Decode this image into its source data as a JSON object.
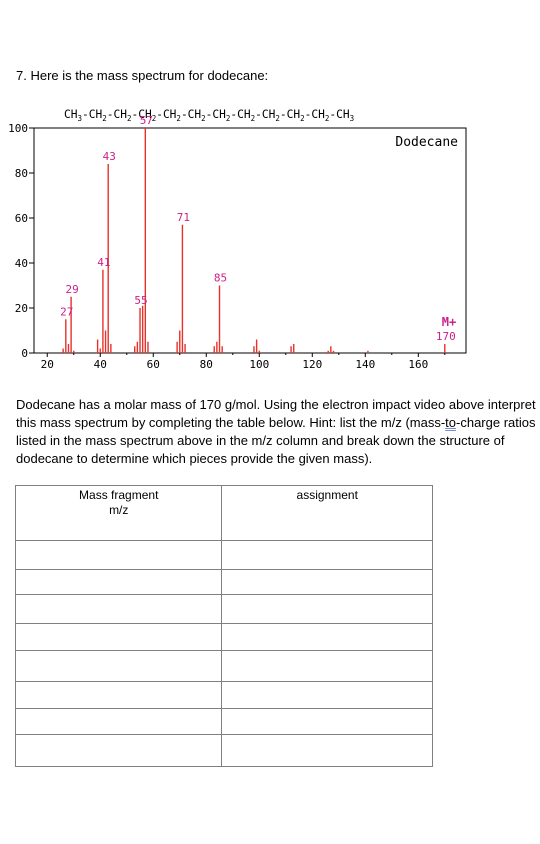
{
  "question": "7.  Here is the mass spectrum for dodecane:",
  "chart_data": {
    "type": "bar",
    "title": "Dodecane",
    "formula": [
      "CH",
      "3",
      "-CH",
      "2",
      "-CH",
      "2",
      "-CH",
      "2",
      "-CH",
      "2",
      "-CH",
      "2",
      "-CH",
      "2",
      "-CH",
      "2",
      "-CH",
      "2",
      "-CH",
      "2",
      "-CH",
      "2",
      "-CH",
      "3"
    ],
    "xlim": [
      15,
      178
    ],
    "ylim": [
      0,
      100
    ],
    "x_ticks": [
      "20",
      "40",
      "60",
      "80",
      "100",
      "120",
      "140",
      "160"
    ],
    "y_ticks": [
      "0",
      "20",
      "40",
      "60",
      "80",
      "100"
    ],
    "peaks": [
      {
        "mz": 26,
        "intensity": 2
      },
      {
        "mz": 27,
        "intensity": 15,
        "label": "27"
      },
      {
        "mz": 28,
        "intensity": 4
      },
      {
        "mz": 29,
        "intensity": 25,
        "label": "29"
      },
      {
        "mz": 30,
        "intensity": 1
      },
      {
        "mz": 39,
        "intensity": 6
      },
      {
        "mz": 40,
        "intensity": 2
      },
      {
        "mz": 41,
        "intensity": 37,
        "label": "41"
      },
      {
        "mz": 42,
        "intensity": 10
      },
      {
        "mz": 43,
        "intensity": 84,
        "label": "43"
      },
      {
        "mz": 44,
        "intensity": 4
      },
      {
        "mz": 53,
        "intensity": 3
      },
      {
        "mz": 54,
        "intensity": 5
      },
      {
        "mz": 55,
        "intensity": 20,
        "label": "55"
      },
      {
        "mz": 56,
        "intensity": 21
      },
      {
        "mz": 57,
        "intensity": 100,
        "label": "57"
      },
      {
        "mz": 58,
        "intensity": 5
      },
      {
        "mz": 69,
        "intensity": 5
      },
      {
        "mz": 70,
        "intensity": 10
      },
      {
        "mz": 71,
        "intensity": 57,
        "label": "71"
      },
      {
        "mz": 72,
        "intensity": 4
      },
      {
        "mz": 83,
        "intensity": 3
      },
      {
        "mz": 84,
        "intensity": 5
      },
      {
        "mz": 85,
        "intensity": 30,
        "label": "85"
      },
      {
        "mz": 86,
        "intensity": 3
      },
      {
        "mz": 98,
        "intensity": 3
      },
      {
        "mz": 99,
        "intensity": 6
      },
      {
        "mz": 100,
        "intensity": 1
      },
      {
        "mz": 112,
        "intensity": 3
      },
      {
        "mz": 113,
        "intensity": 4
      },
      {
        "mz": 126,
        "intensity": 1
      },
      {
        "mz": 127,
        "intensity": 3
      },
      {
        "mz": 128,
        "intensity": 1
      },
      {
        "mz": 141,
        "intensity": 1
      },
      {
        "mz": 170,
        "intensity": 4,
        "label": "170"
      }
    ],
    "molecular_ion_label": "M+",
    "colors": {
      "peak": "#e8312a",
      "label": "#cc2288",
      "frame": "#000000"
    }
  },
  "instructions": {
    "part1": "Dodecane has a molar mass of 170 g/mol.  Using the electron impact video above interpret this mass spectrum by completing the table below. Hint: list the m/z (mass-",
    "part2": "to",
    "part3": "-charge ratios listed in the mass spectrum above in the m/z column and break down the structure of dodecane to determine which pieces provide the given mass)."
  },
  "table": {
    "col1_header_line1": "Mass fragment",
    "col1_header_line2": "m/z",
    "col2_header": "assignment",
    "rows": [
      [
        "",
        ""
      ],
      [
        "",
        ""
      ],
      [
        "",
        ""
      ],
      [
        "",
        ""
      ],
      [
        "",
        ""
      ],
      [
        "",
        ""
      ],
      [
        "",
        ""
      ],
      [
        "",
        ""
      ]
    ]
  }
}
